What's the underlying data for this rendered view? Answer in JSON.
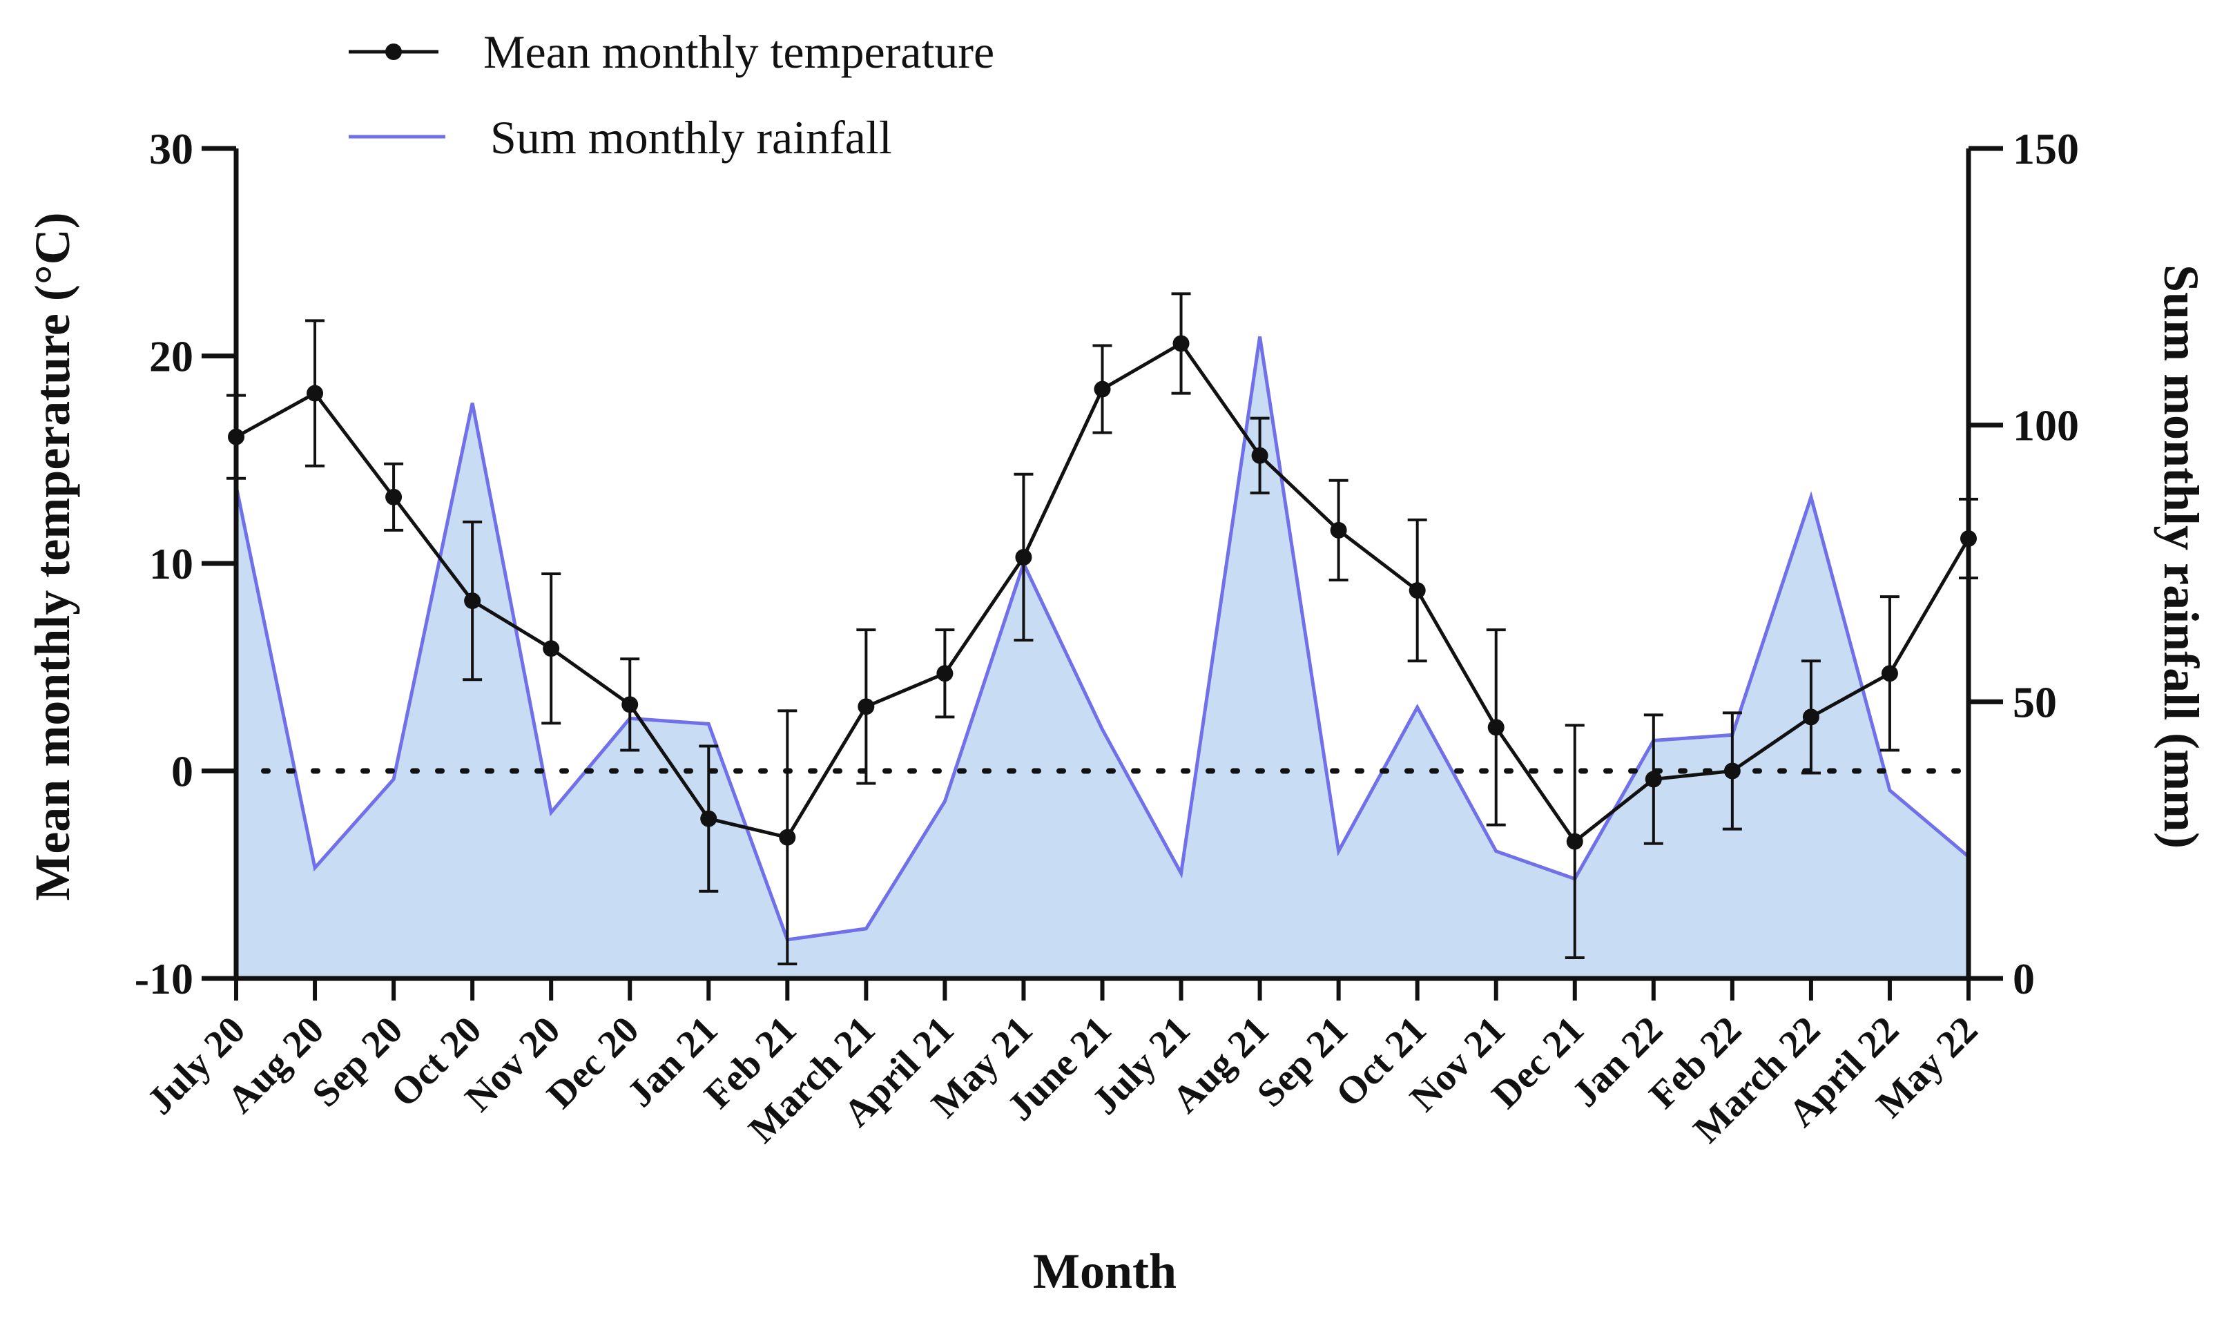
{
  "chart_data": {
    "type": "line",
    "title": "",
    "xlabel": "Month",
    "ylabel": "Mean monthly temperature (°C)",
    "y2label": "Sum monthly rainfall (mm)",
    "categories": [
      "July 20",
      "Aug 20",
      "Sep 20",
      "Oct 20",
      "Nov 20",
      "Dec 20",
      "Jan 21",
      "Feb 21",
      "March 21",
      "April 21",
      "May 21",
      "June 21",
      "July 21",
      "Aug 21",
      "Sep 21",
      "Oct 21",
      "Nov 21",
      "Dec 21",
      "Jan 22",
      "Feb 22",
      "March 22",
      "April 22",
      "May 22"
    ],
    "ylim": [
      -10,
      30
    ],
    "yticks": [
      -10,
      0,
      10,
      20,
      30
    ],
    "y2lim": [
      0,
      150
    ],
    "y2ticks": [
      0,
      50,
      100,
      150
    ],
    "reference_line": {
      "axis": "y",
      "value": 0,
      "style": "dotted"
    },
    "legend_position": "top-left",
    "series": [
      {
        "name": "Mean monthly temperature",
        "kind": "line-markers",
        "axis": "left",
        "color": "#111111",
        "values": [
          16.1,
          18.2,
          13.2,
          8.2,
          5.9,
          3.2,
          -2.3,
          -3.2,
          3.1,
          4.7,
          10.3,
          18.4,
          20.6,
          15.2,
          11.6,
          8.7,
          2.1,
          -3.4,
          -0.4,
          0.0,
          2.6,
          4.7,
          11.2
        ],
        "error": [
          2.0,
          3.5,
          1.6,
          3.8,
          3.6,
          2.2,
          3.5,
          6.1,
          3.7,
          2.1,
          4.0,
          2.1,
          2.4,
          1.8,
          2.4,
          3.4,
          4.7,
          5.6,
          3.1,
          2.8,
          2.7,
          3.7,
          1.9
        ]
      },
      {
        "name": "Sum monthly rainfall",
        "kind": "area",
        "axis": "right",
        "color": "#7070e8",
        "fill": "#c8dcf4",
        "values": [
          89,
          20,
          36,
          104,
          30,
          47,
          46,
          7,
          9,
          32,
          75,
          45,
          19,
          116,
          23,
          49,
          23,
          18,
          43,
          44,
          87,
          34,
          22
        ]
      }
    ]
  }
}
